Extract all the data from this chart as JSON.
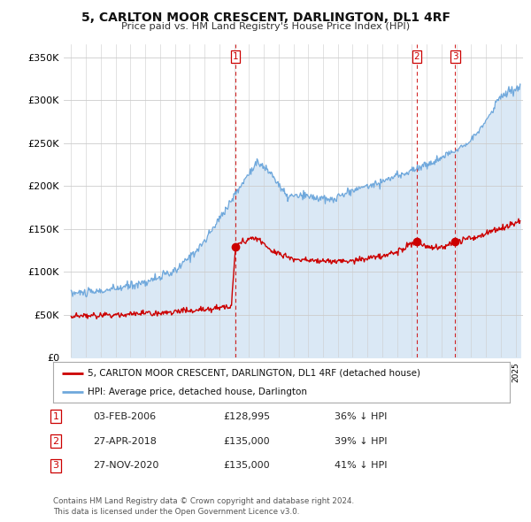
{
  "title": "5, CARLTON MOOR CRESCENT, DARLINGTON, DL1 4RF",
  "subtitle": "Price paid vs. HM Land Registry's House Price Index (HPI)",
  "ylabel_ticks": [
    "£0",
    "£50K",
    "£100K",
    "£150K",
    "£200K",
    "£250K",
    "£300K",
    "£350K"
  ],
  "ytick_values": [
    0,
    50000,
    100000,
    150000,
    200000,
    250000,
    300000,
    350000
  ],
  "ylim": [
    0,
    365000
  ],
  "xlim_left": 1994.5,
  "xlim_right": 2025.5,
  "hpi_color": "#6fa8dc",
  "hpi_fill_color": "#dae8f5",
  "price_color": "#cc0000",
  "dashed_line_color": "#cc0000",
  "transaction_dates": [
    2006.09,
    2018.32,
    2020.92
  ],
  "transaction_labels": [
    "1",
    "2",
    "3"
  ],
  "transaction_prices": [
    128995,
    135000,
    135000
  ],
  "legend_entries": [
    "5, CARLTON MOOR CRESCENT, DARLINGTON, DL1 4RF (detached house)",
    "HPI: Average price, detached house, Darlington"
  ],
  "table_data": [
    [
      "1",
      "03-FEB-2006",
      "£128,995",
      "36% ↓ HPI"
    ],
    [
      "2",
      "27-APR-2018",
      "£135,000",
      "39% ↓ HPI"
    ],
    [
      "3",
      "27-NOV-2020",
      "£135,000",
      "41% ↓ HPI"
    ]
  ],
  "footnote": "Contains HM Land Registry data © Crown copyright and database right 2024.\nThis data is licensed under the Open Government Licence v3.0.",
  "background_color": "#ffffff",
  "grid_color": "#cccccc"
}
